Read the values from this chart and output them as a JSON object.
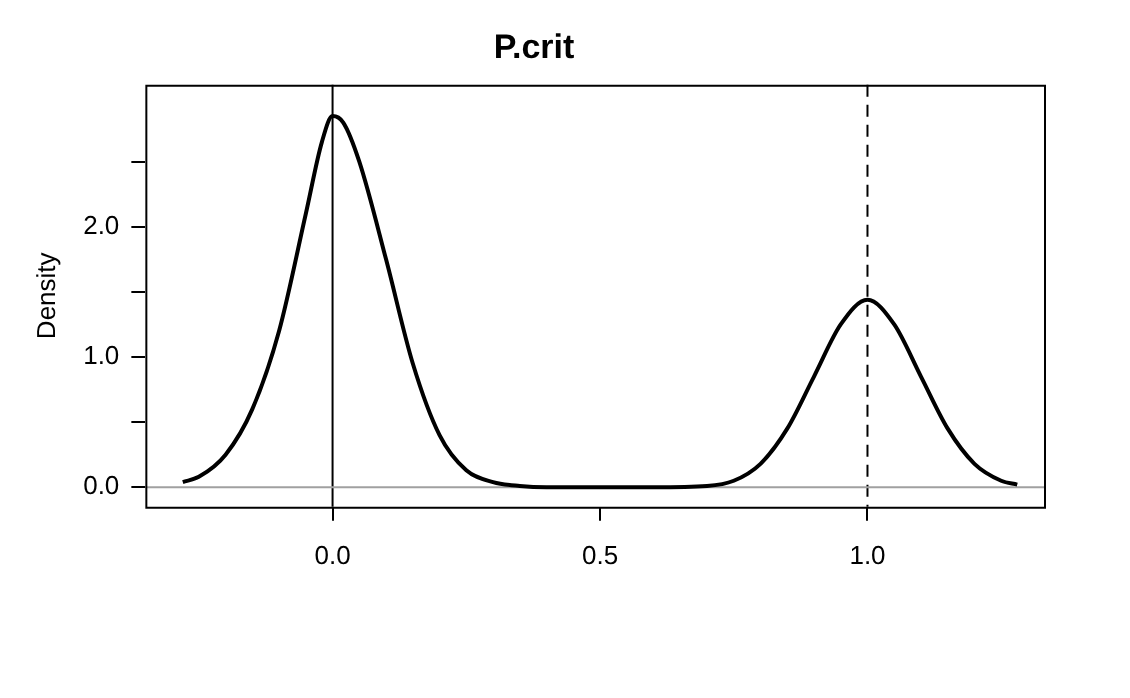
{
  "chart_data": {
    "type": "line",
    "title": "P.crit",
    "ylabel": "Density",
    "x": [
      -0.28,
      -0.25,
      -0.2,
      -0.15,
      -0.1,
      -0.05,
      -0.02,
      0,
      0.02,
      0.05,
      0.1,
      0.15,
      0.2,
      0.25,
      0.3,
      0.35,
      0.4,
      0.5,
      0.6,
      0.7,
      0.75,
      0.8,
      0.85,
      0.9,
      0.95,
      1.0,
      1.05,
      1.1,
      1.15,
      1.2,
      1.25,
      1.28
    ],
    "series": [
      {
        "color": "#000000",
        "values": [
          0.04,
          0.08,
          0.25,
          0.6,
          1.2,
          2.1,
          2.65,
          2.85,
          2.8,
          2.5,
          1.75,
          0.95,
          0.4,
          0.13,
          0.04,
          0.01,
          0,
          0,
          0,
          0.01,
          0.05,
          0.18,
          0.45,
          0.85,
          1.25,
          1.44,
          1.25,
          0.85,
          0.45,
          0.18,
          0.05,
          0.02
        ]
      }
    ],
    "xlim": [
      -0.35,
      1.33
    ],
    "xticks": [
      {
        "value": 0,
        "label": "0.0"
      },
      {
        "value": 0.5,
        "label": "0.5"
      },
      {
        "value": 1,
        "label": "1.0"
      }
    ],
    "ylim": [
      -0.15,
      3.09
    ],
    "yticks": [
      {
        "value": 0,
        "label": "0.0"
      },
      {
        "value": 0.5,
        "label": null
      },
      {
        "value": 1,
        "label": "1.0"
      },
      {
        "value": 1.5,
        "label": null
      },
      {
        "value": 2,
        "label": "2.0"
      },
      {
        "value": 2.5,
        "label": null
      }
    ],
    "ref_lines": [
      {
        "axis": "x",
        "value": 0,
        "color": "#000000",
        "line_style": "solid"
      },
      {
        "axis": "x",
        "value": 1,
        "color": "#000000",
        "line_style": "dashed"
      },
      {
        "axis": "y",
        "value": 0,
        "color": "#a0a0a0",
        "line_style": "solid"
      }
    ],
    "grid": false,
    "legend": false,
    "marker": "none",
    "line_style": "solid"
  }
}
